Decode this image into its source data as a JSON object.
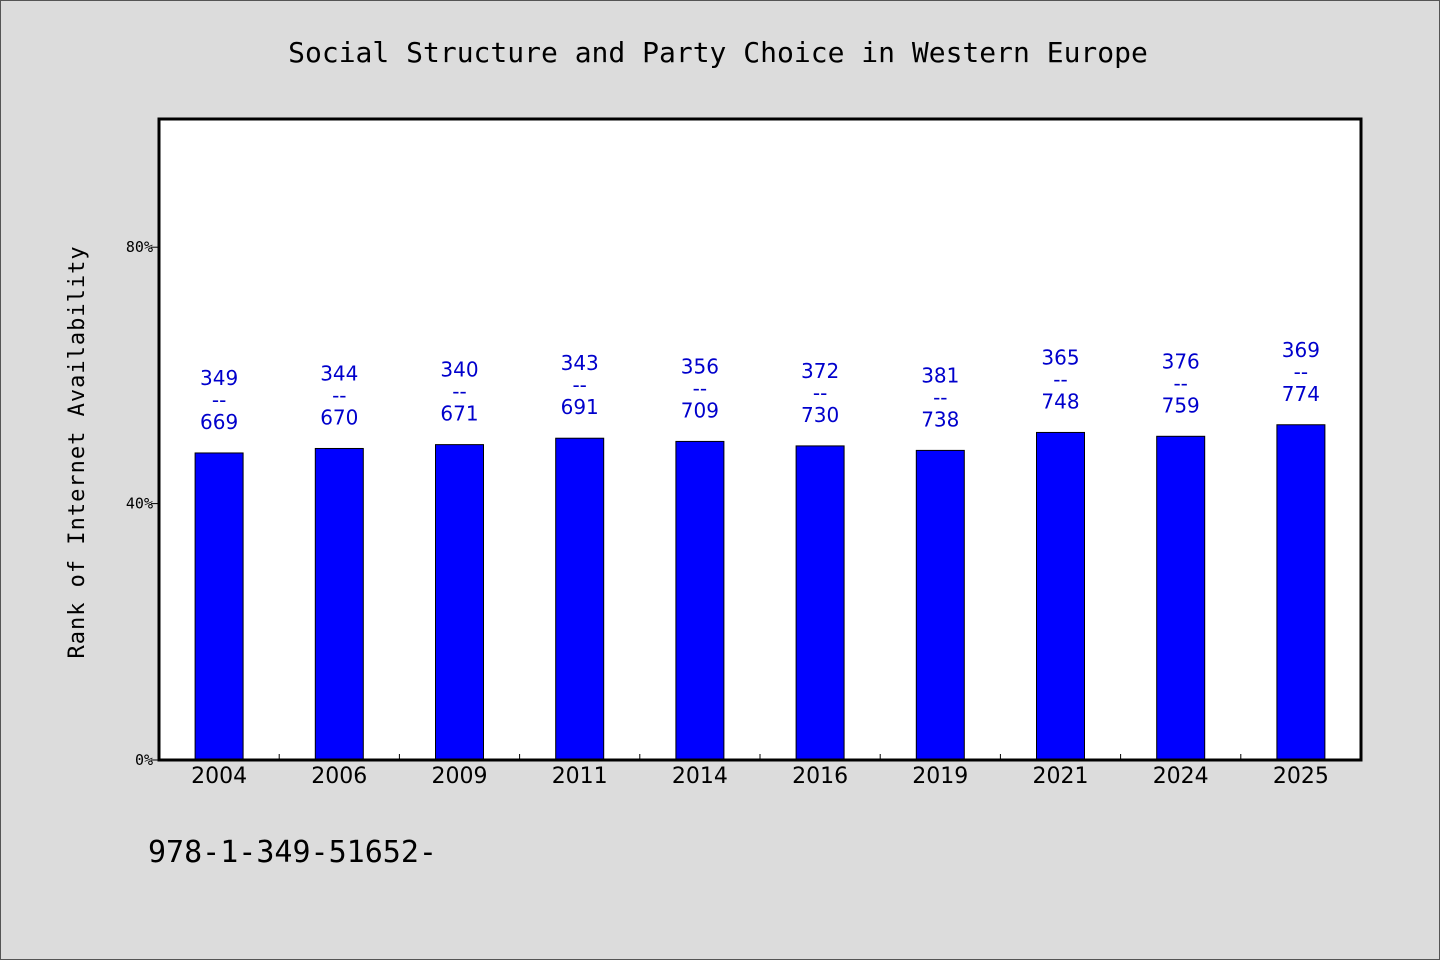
{
  "chart_data": {
    "type": "bar",
    "title": "Social Structure and Party Choice in Western Europe",
    "xlabel": "",
    "ylabel": "Rank of Internet Availability",
    "categories": [
      "2004",
      "2006",
      "2009",
      "2011",
      "2014",
      "2016",
      "2019",
      "2021",
      "2024",
      "2025"
    ],
    "values": [
      47.9,
      48.6,
      49.2,
      50.2,
      49.7,
      49.0,
      48.3,
      51.1,
      50.5,
      52.3
    ],
    "labels_top": [
      "349",
      "344",
      "340",
      "343",
      "356",
      "372",
      "381",
      "365",
      "376",
      "369"
    ],
    "labels_sep": "--",
    "labels_bottom": [
      "669",
      "670",
      "671",
      "691",
      "709",
      "730",
      "738",
      "748",
      "759",
      "774"
    ],
    "ylim": [
      0,
      100
    ],
    "yticks": [
      0,
      40,
      80
    ],
    "ytick_labels": [
      "0%",
      "40%",
      "80%"
    ],
    "grid": false,
    "bar_color": "#0000ff",
    "label_color": "#0000cc"
  },
  "footer": {
    "text": "978-1-349-51652-"
  }
}
